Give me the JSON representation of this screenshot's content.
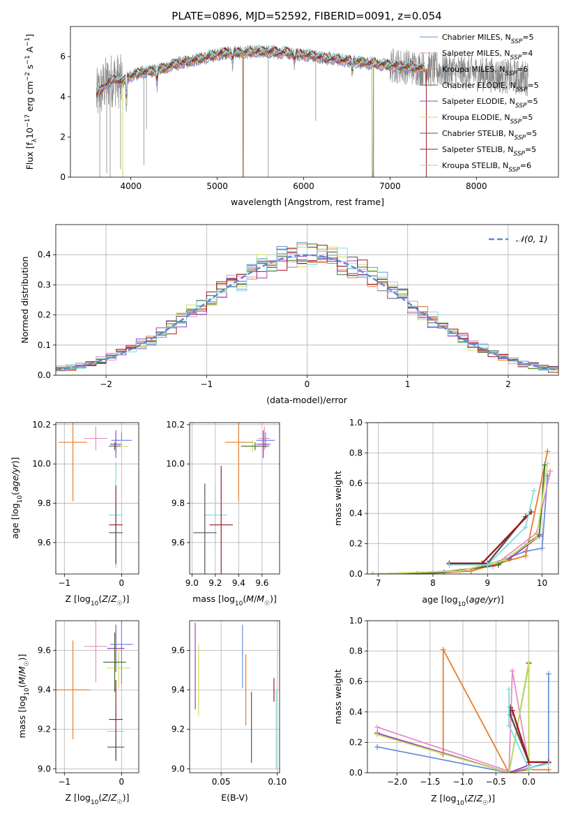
{
  "page": {
    "title": "PLATE=0896, MJD=52592, FIBERID=0091, z=0.054"
  },
  "colors": {
    "chabrier_miles": "#6a8fdc",
    "salpeter_miles": "#e98bc4",
    "kroupa_miles": "#e87d2b",
    "chabrier_elodie": "#3d6e38",
    "salpeter_elodie": "#9a3ec3",
    "kroupa_elodie": "#c7e05a",
    "chabrier_stelib": "#555555",
    "salpeter_stelib": "#a3181e",
    "kroupa_stelib": "#7fdcdc",
    "data": "#888888",
    "gauss": "#5b87d6"
  },
  "chart_data": [
    {
      "id": "spectrum",
      "type": "line",
      "xlabel": "wavelength [Angstrom, rest frame]",
      "ylabel_parts": [
        "Flux [f",
        "λ",
        "10",
        "−17",
        " erg cm",
        "−2",
        " s",
        "−1",
        " A",
        "−1",
        "]"
      ],
      "xlim": [
        3300,
        8950
      ],
      "ylim": [
        0,
        7.5
      ],
      "xticks": [
        4000,
        5000,
        6000,
        7000,
        8000
      ],
      "yticks": [
        0,
        2,
        4,
        6
      ],
      "legend_position": "upper right",
      "legend": [
        {
          "key": "chabrier_miles",
          "name": "Chabrier MILES",
          "n": "5"
        },
        {
          "key": "salpeter_miles",
          "name": "Salpeter MILES",
          "n": "4"
        },
        {
          "key": "kroupa_miles",
          "name": "Kroupa MILES",
          "n": "6"
        },
        {
          "key": "chabrier_elodie",
          "name": "Chabrier ELODIE",
          "n": "5"
        },
        {
          "key": "salpeter_elodie",
          "name": "Salpeter ELODIE",
          "n": "5"
        },
        {
          "key": "kroupa_elodie",
          "name": "Kroupa ELODIE",
          "n": "5"
        },
        {
          "key": "chabrier_stelib",
          "name": "Chabrier STELIB",
          "n": "5"
        },
        {
          "key": "salpeter_stelib",
          "name": "Salpeter STELIB",
          "n": "5"
        },
        {
          "key": "kroupa_stelib",
          "name": "Kroupa STELIB",
          "n": "6"
        }
      ],
      "n_prefix": "N",
      "n_sub": "SSP",
      "continuum": [
        [
          3600,
          4.0
        ],
        [
          3700,
          4.6
        ],
        [
          3800,
          4.9
        ],
        [
          3900,
          4.7
        ],
        [
          3980,
          5.0
        ],
        [
          4100,
          5.2
        ],
        [
          4300,
          5.3
        ],
        [
          4500,
          5.6
        ],
        [
          4700,
          5.8
        ],
        [
          4900,
          6.0
        ],
        [
          5100,
          6.2
        ],
        [
          5300,
          6.2
        ],
        [
          5500,
          6.25
        ],
        [
          5800,
          6.2
        ],
        [
          6000,
          6.1
        ],
        [
          6300,
          5.9
        ],
        [
          6600,
          5.75
        ],
        [
          6900,
          5.6
        ],
        [
          7200,
          5.5
        ],
        [
          7400,
          5.4
        ]
      ],
      "model_x_range": [
        3600,
        7400
      ],
      "data_x_range": [
        3600,
        8600
      ],
      "dips": [
        [
          4300,
          0.8
        ],
        [
          5180,
          0.6
        ],
        [
          5300,
          6.2
        ],
        [
          5895,
          0.5
        ],
        [
          6563,
          0.7
        ],
        [
          6800,
          5.6
        ],
        [
          3950,
          1.5
        ]
      ],
      "model_spikes": [
        [
          5300,
          "kroupa_miles"
        ],
        [
          6790,
          "kroupa_elodie"
        ],
        [
          3905,
          "kroupa_elodie"
        ],
        [
          7420,
          "salpeter_stelib"
        ]
      ],
      "data_spikes": [
        [
          3640,
          0.0
        ],
        [
          3720,
          0.2
        ],
        [
          3760,
          0.0
        ],
        [
          3880,
          0.4
        ],
        [
          4150,
          0.6
        ],
        [
          4180,
          2.4
        ],
        [
          5590,
          0.0
        ],
        [
          6140,
          2.8
        ],
        [
          6810,
          0.0
        ]
      ]
    },
    {
      "id": "residuals",
      "type": "step",
      "xlabel": "(data-model)/error",
      "ylabel": "Normed distribution",
      "xlim": [
        -2.5,
        2.5
      ],
      "ylim": [
        0,
        0.5
      ],
      "xticks": [
        -2,
        -1,
        0,
        1,
        2
      ],
      "xtick_labels": [
        "−2",
        "−1",
        "0",
        "1",
        "2"
      ],
      "yticks": [
        0.0,
        0.1,
        0.2,
        0.3,
        0.4
      ],
      "ytick_labels": [
        "0.0",
        "0.1",
        "0.2",
        "0.3",
        "0.4"
      ],
      "legend": "𝒩(0, 1)",
      "legend_position": "upper right",
      "bin_width": 0.1,
      "bins_start": -2.5,
      "reference_curve": "normal(0,1)"
    },
    {
      "id": "age_vs_Z",
      "type": "errorbar",
      "xlabel": "Z [log10(Z/Z☉)]",
      "ylabel": "age [log10(age/yr)]",
      "xlim": [
        -1.15,
        0.3
      ],
      "ylim": [
        9.44,
        10.21
      ],
      "xticks": [
        -1,
        0
      ],
      "xtick_labels": [
        "−1",
        "0"
      ],
      "yticks": [
        9.6,
        9.8,
        10.0,
        10.2
      ],
      "ytick_labels": [
        "9.6",
        "9.8",
        "10.0",
        "10.2"
      ],
      "points": [
        {
          "key": "kroupa_miles",
          "x": -0.85,
          "xerr": 0.25,
          "y": 10.11,
          "yerr": 0.3
        },
        {
          "key": "salpeter_miles",
          "x": -0.45,
          "xerr": 0.2,
          "y": 10.13,
          "yerr": 0.06
        },
        {
          "key": "chabrier_miles",
          "x": 0.0,
          "xerr": 0.18,
          "y": 10.12,
          "yerr": 0.04
        },
        {
          "key": "salpeter_elodie",
          "x": -0.1,
          "xerr": 0.1,
          "y": 10.1,
          "yerr": 0.07
        },
        {
          "key": "kroupa_elodie",
          "x": 0.0,
          "xerr": 0.12,
          "y": 10.09,
          "yerr": 0.03
        },
        {
          "key": "chabrier_elodie",
          "x": -0.12,
          "xerr": 0.1,
          "y": 10.09,
          "yerr": 0.02
        },
        {
          "key": "kroupa_stelib",
          "x": -0.1,
          "xerr": 0.12,
          "y": 9.74,
          "yerr": 0.27
        },
        {
          "key": "salpeter_stelib",
          "x": -0.1,
          "xerr": 0.12,
          "y": 9.69,
          "yerr": 0.2
        },
        {
          "key": "chabrier_stelib",
          "x": -0.1,
          "xerr": 0.12,
          "y": 9.65,
          "yerr": 0.15
        }
      ]
    },
    {
      "id": "age_vs_mass",
      "type": "errorbar",
      "xlabel": "mass [log10(M/M☉)]",
      "ylabel": "",
      "xlim": [
        8.98,
        9.75
      ],
      "ylim": [
        9.44,
        10.21
      ],
      "xticks": [
        9.0,
        9.2,
        9.4,
        9.6
      ],
      "xtick_labels": [
        "9.0",
        "9.2",
        "9.4",
        "9.6"
      ],
      "yticks": [
        9.6,
        9.8,
        10.0,
        10.2
      ],
      "ytick_labels": [
        "9.6",
        "9.8",
        "10.0",
        "10.2"
      ],
      "points": [
        {
          "key": "kroupa_miles",
          "x": 9.4,
          "xerr": 0.12,
          "y": 10.11,
          "yerr": 0.3
        },
        {
          "key": "salpeter_miles",
          "x": 9.62,
          "xerr": 0.05,
          "y": 10.13,
          "yerr": 0.06
        },
        {
          "key": "chabrier_miles",
          "x": 9.63,
          "xerr": 0.08,
          "y": 10.12,
          "yerr": 0.04
        },
        {
          "key": "salpeter_elodie",
          "x": 9.61,
          "xerr": 0.06,
          "y": 10.1,
          "yerr": 0.07
        },
        {
          "key": "kroupa_elodie",
          "x": 9.52,
          "xerr": 0.1,
          "y": 10.09,
          "yerr": 0.03
        },
        {
          "key": "chabrier_elodie",
          "x": 9.54,
          "xerr": 0.12,
          "y": 10.09,
          "yerr": 0.02
        },
        {
          "key": "kroupa_stelib",
          "x": 9.2,
          "xerr": 0.1,
          "y": 9.74,
          "yerr": 0.15
        },
        {
          "key": "salpeter_stelib",
          "x": 9.25,
          "xerr": 0.1,
          "y": 9.69,
          "yerr": 0.3
        },
        {
          "key": "chabrier_stelib",
          "x": 9.11,
          "xerr": 0.1,
          "y": 9.65,
          "yerr": 0.25
        }
      ]
    },
    {
      "id": "weight_vs_age",
      "type": "line",
      "xlabel": "age [log10(age/yr)]",
      "ylabel": "mass weight",
      "xlim": [
        6.8,
        10.3
      ],
      "ylim": [
        0,
        1.0
      ],
      "xticks": [
        7,
        8,
        9,
        10
      ],
      "xtick_labels": [
        "7",
        "8",
        "9",
        "10"
      ],
      "yticks": [
        0,
        0.2,
        0.4,
        0.6,
        0.8,
        1.0
      ],
      "ytick_labels": [
        "0.0",
        "0.2",
        "0.4",
        "0.6",
        "0.8",
        "1.0"
      ],
      "series": [
        {
          "key": "chabrier_miles",
          "x": [
            6.9,
            7.7,
            8.7,
            9.7,
            10.0,
            10.1
          ],
          "y": [
            0.0,
            0.0,
            0.02,
            0.15,
            0.17,
            0.65
          ]
        },
        {
          "key": "salpeter_miles",
          "x": [
            6.9,
            8.0,
            9.1,
            9.9,
            10.15
          ],
          "y": [
            0.0,
            0.01,
            0.05,
            0.27,
            0.68
          ]
        },
        {
          "key": "kroupa_miles",
          "x": [
            6.9,
            7.7,
            8.7,
            9.7,
            10.1
          ],
          "y": [
            0.0,
            0.0,
            0.02,
            0.12,
            0.81
          ]
        },
        {
          "key": "chabrier_elodie",
          "x": [
            6.9,
            8.2,
            9.2,
            9.95,
            10.05
          ],
          "y": [
            0.0,
            0.01,
            0.06,
            0.26,
            0.72
          ]
        },
        {
          "key": "salpeter_elodie",
          "x": [
            6.9,
            8.5,
            9.4,
            9.95
          ],
          "y": [
            0.0,
            0.02,
            0.1,
            0.25
          ]
        },
        {
          "key": "kroupa_elodie",
          "x": [
            6.9,
            8.5,
            9.3,
            9.9,
            10.1
          ],
          "y": [
            0.0,
            0.02,
            0.09,
            0.24,
            0.73
          ]
        },
        {
          "key": "chabrier_stelib",
          "x": [
            8.3,
            9.0,
            9.7
          ],
          "y": [
            0.07,
            0.07,
            0.38
          ]
        },
        {
          "key": "salpeter_stelib",
          "x": [
            8.3,
            8.9,
            9.8
          ],
          "y": [
            0.07,
            0.07,
            0.41
          ]
        },
        {
          "key": "kroupa_stelib",
          "x": [
            8.3,
            9.0,
            9.7,
            9.85
          ],
          "y": [
            0.06,
            0.06,
            0.31,
            0.55
          ]
        }
      ]
    },
    {
      "id": "mass_vs_Z",
      "type": "errorbar",
      "xlabel": "Z [log10(Z/Z☉)]",
      "ylabel": "mass [log10(M/M☉)]",
      "xlim": [
        -1.15,
        0.3
      ],
      "ylim": [
        8.98,
        9.75
      ],
      "xticks": [
        -1,
        0
      ],
      "xtick_labels": [
        "−1",
        "0"
      ],
      "yticks": [
        9.0,
        9.2,
        9.4,
        9.6
      ],
      "ytick_labels": [
        "9.0",
        "9.2",
        "9.4",
        "9.6"
      ],
      "points": [
        {
          "key": "kroupa_miles",
          "x": -0.85,
          "xerr": 0.3,
          "y": 9.4,
          "yerr": 0.25
        },
        {
          "key": "salpeter_miles",
          "x": -0.45,
          "xerr": 0.2,
          "y": 9.62,
          "yerr": 0.18
        },
        {
          "key": "chabrier_miles",
          "x": 0.0,
          "xerr": 0.2,
          "y": 9.63,
          "yerr": 0.2
        },
        {
          "key": "salpeter_elodie",
          "x": -0.1,
          "xerr": 0.15,
          "y": 9.61,
          "yerr": 0.12
        },
        {
          "key": "kroupa_elodie",
          "x": -0.05,
          "xerr": 0.2,
          "y": 9.51,
          "yerr": 0.1
        },
        {
          "key": "chabrier_elodie",
          "x": -0.12,
          "xerr": 0.2,
          "y": 9.54,
          "yerr": 0.15
        },
        {
          "key": "kroupa_stelib",
          "x": -0.1,
          "xerr": 0.15,
          "y": 9.19,
          "yerr": 0.15
        },
        {
          "key": "salpeter_stelib",
          "x": -0.1,
          "xerr": 0.12,
          "y": 9.25,
          "yerr": 0.2
        },
        {
          "key": "chabrier_stelib",
          "x": -0.1,
          "xerr": 0.15,
          "y": 9.11,
          "yerr": 0.07
        }
      ]
    },
    {
      "id": "mass_vs_ebv",
      "type": "errorbar",
      "xlabel": "E(B-V)",
      "ylabel": "",
      "xlim": [
        0.022,
        0.102
      ],
      "ylim": [
        8.98,
        9.75
      ],
      "xticks": [
        0.05,
        0.1
      ],
      "xtick_labels": [
        "0.05",
        "0.10"
      ],
      "yticks": [
        9.0,
        9.2,
        9.4,
        9.6
      ],
      "ytick_labels": [
        "9.0",
        "9.2",
        "9.4",
        "9.6"
      ],
      "points": [
        {
          "key": "salpeter_elodie",
          "x": 0.027,
          "y": 9.52,
          "yerr": 0.22
        },
        {
          "key": "kroupa_elodie",
          "x": 0.03,
          "y": 9.45,
          "yerr": 0.18
        },
        {
          "key": "chabrier_miles",
          "x": 0.069,
          "y": 9.57,
          "yerr": 0.16
        },
        {
          "key": "kroupa_miles",
          "x": 0.072,
          "y": 9.4,
          "yerr": 0.18
        },
        {
          "key": "chabrier_stelib",
          "x": 0.077,
          "y": 9.21,
          "yerr": 0.18
        },
        {
          "key": "salpeter_stelib",
          "x": 0.097,
          "y": 9.4,
          "yerr": 0.06
        },
        {
          "key": "kroupa_stelib",
          "x": 0.099,
          "y": 9.2,
          "yerr": 0.2
        }
      ]
    },
    {
      "id": "weight_vs_Z",
      "type": "line",
      "xlabel": "Z [log10(Z/Z☉)]",
      "ylabel": "mass weight",
      "xlim": [
        -2.45,
        0.45
      ],
      "ylim": [
        0,
        1.0
      ],
      "xticks": [
        -2.0,
        -1.5,
        -1.0,
        -0.5,
        0.0
      ],
      "xtick_labels": [
        "−2.0",
        "−1.5",
        "−1.0",
        "−0.5",
        "0.0"
      ],
      "yticks": [
        0,
        0.2,
        0.4,
        0.6,
        0.8,
        1.0
      ],
      "ytick_labels": [
        "0.0",
        "0.2",
        "0.4",
        "0.6",
        "0.8",
        "1.0"
      ],
      "series": [
        {
          "key": "chabrier_miles",
          "x": [
            -2.3,
            -0.3,
            0.0,
            0.3,
            0.3
          ],
          "y": [
            0.17,
            0.0,
            0.03,
            0.07,
            0.65
          ]
        },
        {
          "key": "salpeter_miles",
          "x": [
            -2.3,
            -0.3,
            -0.25,
            0.0
          ],
          "y": [
            0.3,
            0.01,
            0.67,
            0.05
          ]
        },
        {
          "key": "kroupa_miles",
          "x": [
            -1.3,
            -1.3,
            -0.3,
            0.0,
            0.3
          ],
          "y": [
            0.12,
            0.81,
            0.0,
            0.02,
            0.02
          ]
        },
        {
          "key": "chabrier_elodie",
          "x": [
            -2.3,
            -0.3,
            0.0,
            0.0
          ],
          "y": [
            0.26,
            0.0,
            0.72,
            0.03
          ]
        },
        {
          "key": "salpeter_elodie",
          "x": [
            -2.3,
            -0.3,
            0.0
          ],
          "y": [
            0.26,
            0.0,
            0.05
          ]
        },
        {
          "key": "kroupa_elodie",
          "x": [
            -2.3,
            -0.3,
            0.0,
            0.0
          ],
          "y": [
            0.25,
            0.0,
            0.73,
            0.02
          ]
        },
        {
          "key": "chabrier_stelib",
          "x": [
            -0.28,
            -0.28,
            0.0,
            0.3
          ],
          "y": [
            0.43,
            0.38,
            0.07,
            0.07
          ]
        },
        {
          "key": "salpeter_stelib",
          "x": [
            -0.25,
            0.0,
            0.3
          ],
          "y": [
            0.41,
            0.07,
            0.07
          ]
        },
        {
          "key": "kroupa_stelib",
          "x": [
            -0.3,
            -0.3,
            0.0,
            0.3
          ],
          "y": [
            0.55,
            0.31,
            0.03,
            0.06
          ]
        }
      ]
    }
  ]
}
